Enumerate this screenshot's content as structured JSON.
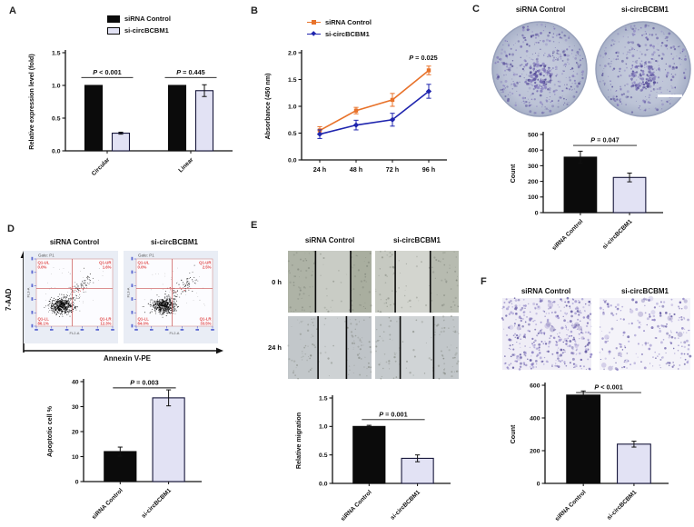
{
  "panels": {
    "a": {
      "letter": "A"
    },
    "b": {
      "letter": "B"
    },
    "c": {
      "letter": "C",
      "col_titles": [
        "siRNA Control",
        "si-circBCBM1"
      ],
      "dishes": [
        {
          "colonies": 420
        },
        {
          "colonies": 330
        }
      ]
    },
    "d": {
      "letter": "D",
      "col_titles": [
        "siRNA Control",
        "si-circBCBM1"
      ],
      "y_axis_label": "7-AAD",
      "x_axis_label": "Annexin V-PE",
      "flow_plots": [
        {
          "gate": "Gate: P1",
          "x_label": "FL2-A",
          "y_label": "FL3-A",
          "quadrants": {
            "ul": {
              "label": "Q1-UL",
              "value": "0.0%"
            },
            "ur": {
              "label": "Q1-UR",
              "value": "1.6%"
            },
            "ll": {
              "label": "Q1-LL",
              "value": "86.1%"
            },
            "lr": {
              "label": "Q1-LR",
              "value": "12.3%"
            }
          }
        },
        {
          "gate": "Gate: P1",
          "x_label": "FL2-A",
          "y_label": "FL3-A",
          "quadrants": {
            "ul": {
              "label": "Q1-UL",
              "value": "0.0%"
            },
            "ur": {
              "label": "Q1-UR",
              "value": "2.5%"
            },
            "ll": {
              "label": "Q1-LL",
              "value": "64.0%"
            },
            "lr": {
              "label": "Q1-LR",
              "value": "33.5%"
            }
          }
        }
      ]
    },
    "e": {
      "letter": "E",
      "col_titles": [
        "siRNA Control",
        "si-circBCBM1"
      ],
      "row_labels": [
        "0 h",
        "24 h"
      ],
      "images": [
        {
          "lines": [
            0.33,
            0.75
          ],
          "sideL": "#aeb3a6",
          "mid": "#c9ccc5",
          "sideR": "#a9ae9f"
        },
        {
          "lines": [
            0.24,
            0.66
          ],
          "sideL": "#c6c9c1",
          "mid": "#d3d5cf",
          "sideR": "#b7bbb0"
        },
        {
          "lines": [
            0.36,
            0.7
          ],
          "sideL": "#c2c7ca",
          "mid": "#ced2d4",
          "sideR": "#bfc4c8"
        },
        {
          "lines": [
            0.3,
            0.7
          ],
          "sideL": "#c5cacd",
          "mid": "#d0d4d6",
          "sideR": "#c2c7ca"
        }
      ]
    },
    "f": {
      "letter": "F",
      "col_titles": [
        "siRNA Control",
        "si-circBCBM1"
      ],
      "images": [
        {
          "bg": "#efedf6",
          "count": 400
        },
        {
          "bg": "#f4f3f9",
          "count": 210
        }
      ]
    }
  },
  "colors": {
    "bar_black": "#0b0b0b",
    "bar_light": "#e2e2f4",
    "bar_border": "#16163a",
    "line_orange": "#e8722a",
    "line_blue": "#1f25ae",
    "quadrant_red": "#e04848",
    "flow_blue": "#3a46c8"
  },
  "chart_data": [
    {
      "id": "a",
      "type": "bar",
      "grouped": true,
      "categories": [
        "Circular",
        "Linear"
      ],
      "series": [
        {
          "name": "siRNA Control",
          "values": [
            1.0,
            1.0
          ],
          "errors": [
            0,
            0
          ]
        },
        {
          "name": "si-circBCBM1",
          "values": [
            0.27,
            0.92
          ],
          "errors": [
            0.015,
            0.09
          ]
        }
      ],
      "ylabel": "Relative expression level (fold)",
      "ylim": [
        0,
        1.5
      ],
      "yticks": [
        0,
        0.5,
        1.0,
        1.5
      ],
      "ytick_labels": [
        "0.0",
        "0.5",
        "1.0",
        "1.5"
      ],
      "annotations": [
        {
          "text": "P < 0.001",
          "group": 0,
          "line_y": 1.12
        },
        {
          "text": "P = 0.445",
          "group": 1,
          "line_y": 1.12
        }
      ],
      "rotate_xlabels": true,
      "ml": 46,
      "mr": 10,
      "mt": 12,
      "mb": 48
    },
    {
      "id": "b",
      "type": "line",
      "x": [
        "24 h",
        "48 h",
        "72 h",
        "96 h"
      ],
      "series": [
        {
          "name": "siRNA Control",
          "color": "#e8722a",
          "values": [
            0.55,
            0.92,
            1.12,
            1.67
          ],
          "errors": [
            0.07,
            0.06,
            0.12,
            0.08
          ]
        },
        {
          "name": "si-circBCBM1",
          "color": "#1f25ae",
          "values": [
            0.48,
            0.65,
            0.75,
            1.28
          ],
          "errors": [
            0.08,
            0.09,
            0.12,
            0.13
          ]
        }
      ],
      "ylabel": "Absorbance (450 nm)",
      "ylim": [
        0,
        2.0
      ],
      "yticks": [
        0,
        0.5,
        1.0,
        1.5,
        2.0
      ],
      "ytick_labels": [
        "0.0",
        "0.5",
        "1.0",
        "1.5",
        "2.0"
      ],
      "annotations": [
        {
          "text": "P = 0.025",
          "pos": "top-right"
        }
      ],
      "ml": 46,
      "mr": 12,
      "mt": 14,
      "mb": 26
    },
    {
      "id": "c",
      "type": "bar",
      "categories": [
        "siRNA Control",
        "si-circBCBM1"
      ],
      "values": [
        355,
        225
      ],
      "errors": [
        38,
        28
      ],
      "ylabel": "Count",
      "ylim": [
        0,
        500
      ],
      "yticks": [
        0,
        100,
        200,
        300,
        400,
        500
      ],
      "ytick_labels": [
        "0",
        "100",
        "200",
        "300",
        "400",
        "500"
      ],
      "annotations": [
        {
          "text": "P = 0.047",
          "span": true,
          "line_y": 430
        }
      ],
      "rotate_xlabels": true,
      "ml": 42,
      "mr": 14,
      "mt": 12,
      "mb": 48
    },
    {
      "id": "d",
      "type": "bar",
      "categories": [
        "siRNA Control",
        "si-circBCBM1"
      ],
      "values": [
        12,
        33.5
      ],
      "errors": [
        1.8,
        3.2
      ],
      "ylabel": "Apoptotic cell %",
      "ylim": [
        0,
        40
      ],
      "yticks": [
        0,
        10,
        20,
        30,
        40
      ],
      "ytick_labels": [
        "0",
        "10",
        "20",
        "30",
        "40"
      ],
      "annotations": [
        {
          "text": "P = 0.003",
          "span": true,
          "line_y": 37.5
        }
      ],
      "rotate_xlabels": true,
      "ml": 46,
      "mr": 22,
      "mt": 14,
      "mb": 48
    },
    {
      "id": "e",
      "type": "bar",
      "categories": [
        "siRNA Control",
        "si-circBCBM1"
      ],
      "values": [
        1.0,
        0.44
      ],
      "errors": [
        0.02,
        0.06
      ],
      "ylabel": "Relative migration",
      "ylim": [
        0,
        1.5
      ],
      "yticks": [
        0,
        0.5,
        1.0,
        1.5
      ],
      "ytick_labels": [
        "0.0",
        "0.5",
        "1.0",
        "1.5"
      ],
      "annotations": [
        {
          "text": "P = 0.001",
          "span": true,
          "line_y": 1.12
        }
      ],
      "rotate_xlabels": true,
      "ml": 46,
      "mr": 16,
      "mt": 12,
      "mb": 48
    },
    {
      "id": "f",
      "type": "bar",
      "categories": [
        "siRNA Control",
        "si-circBCBM1"
      ],
      "values": [
        540,
        240
      ],
      "errors": [
        25,
        18
      ],
      "ylabel": "Count",
      "ylim": [
        0,
        600
      ],
      "yticks": [
        0,
        200,
        400,
        600
      ],
      "ytick_labels": [
        "0",
        "200",
        "400",
        "600"
      ],
      "annotations": [
        {
          "text": "P < 0.001",
          "span": true,
          "line_y": 555
        }
      ],
      "rotate_xlabels": true,
      "ml": 44,
      "mr": 16,
      "mt": 14,
      "mb": 48
    }
  ]
}
